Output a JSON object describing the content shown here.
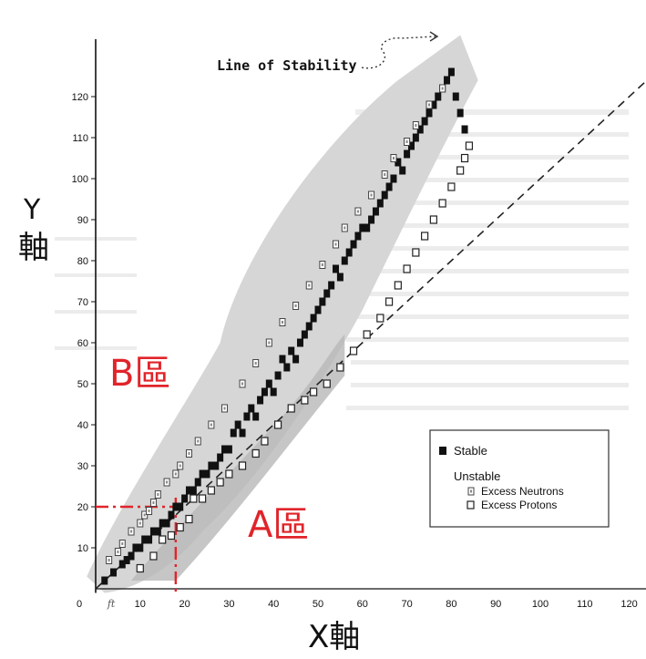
{
  "labels": {
    "y_axis_big": "Y",
    "y_axis_big_cjk": "軸",
    "x_axis_big": "X軸",
    "region_b": "B區",
    "region_a": "A區",
    "line_of_stability": "Line of Stability"
  },
  "colors": {
    "band": "#d6d6d6",
    "band_inner": "#b8b8b8",
    "region_marker": "#e0242a",
    "ink": "#111111"
  },
  "chart_data": {
    "type": "scatter",
    "title": "",
    "xlabel": "X軸",
    "ylabel": "Y軸",
    "xlim": [
      0,
      130
    ],
    "ylim": [
      0,
      130
    ],
    "x_ticks": [
      "0",
      "10",
      "20",
      "30",
      "40",
      "50",
      "60",
      "70",
      "80",
      "90",
      "100",
      "110",
      "120"
    ],
    "x_tick_values": [
      0,
      10,
      20,
      30,
      40,
      50,
      60,
      70,
      80,
      90,
      100,
      110,
      120
    ],
    "y_ticks": [
      "10",
      "20",
      "30",
      "40",
      "50",
      "60",
      "70",
      "80",
      "90",
      "100",
      "110",
      "120"
    ],
    "y_tick_values": [
      10,
      20,
      30,
      40,
      50,
      60,
      70,
      80,
      90,
      100,
      110,
      120
    ],
    "x_tick_at_8_text": "𝑓𝑡",
    "reference_line": {
      "style": "dashed",
      "points": [
        [
          0,
          0
        ],
        [
          130,
          130
        ]
      ]
    },
    "annotation": "Line of Stability",
    "marker_lines": {
      "x": 18,
      "y": 20
    },
    "legend": {
      "placement": "lower-right",
      "heading_stable": "Stable",
      "heading_unstable": "Unstable",
      "excess_neutrons": "Excess Neutrons",
      "excess_protons": "Excess Protons"
    },
    "series": [
      {
        "name": "Stable",
        "points": [
          [
            2,
            2
          ],
          [
            4,
            4
          ],
          [
            6,
            6
          ],
          [
            7,
            7
          ],
          [
            8,
            8
          ],
          [
            9,
            10
          ],
          [
            10,
            10
          ],
          [
            11,
            12
          ],
          [
            12,
            12
          ],
          [
            13,
            14
          ],
          [
            14,
            14
          ],
          [
            15,
            16
          ],
          [
            16,
            16
          ],
          [
            17,
            18
          ],
          [
            18,
            20
          ],
          [
            19,
            20
          ],
          [
            20,
            22
          ],
          [
            21,
            24
          ],
          [
            22,
            24
          ],
          [
            23,
            26
          ],
          [
            24,
            28
          ],
          [
            25,
            28
          ],
          [
            26,
            30
          ],
          [
            27,
            30
          ],
          [
            28,
            32
          ],
          [
            29,
            34
          ],
          [
            30,
            34
          ],
          [
            31,
            38
          ],
          [
            32,
            40
          ],
          [
            33,
            38
          ],
          [
            34,
            42
          ],
          [
            35,
            44
          ],
          [
            36,
            42
          ],
          [
            37,
            46
          ],
          [
            38,
            48
          ],
          [
            39,
            50
          ],
          [
            40,
            48
          ],
          [
            41,
            52
          ],
          [
            42,
            56
          ],
          [
            43,
            54
          ],
          [
            44,
            58
          ],
          [
            45,
            56
          ],
          [
            46,
            60
          ],
          [
            47,
            62
          ],
          [
            48,
            64
          ],
          [
            49,
            66
          ],
          [
            50,
            68
          ],
          [
            51,
            70
          ],
          [
            52,
            72
          ],
          [
            53,
            74
          ],
          [
            54,
            78
          ],
          [
            55,
            76
          ],
          [
            56,
            80
          ],
          [
            57,
            82
          ],
          [
            58,
            84
          ],
          [
            59,
            86
          ],
          [
            60,
            88
          ],
          [
            61,
            88
          ],
          [
            62,
            90
          ],
          [
            63,
            92
          ],
          [
            64,
            94
          ],
          [
            65,
            96
          ],
          [
            66,
            98
          ],
          [
            67,
            100
          ],
          [
            68,
            104
          ],
          [
            69,
            102
          ],
          [
            70,
            106
          ],
          [
            71,
            108
          ],
          [
            72,
            110
          ],
          [
            73,
            112
          ],
          [
            74,
            114
          ],
          [
            75,
            116
          ],
          [
            76,
            118
          ],
          [
            77,
            120
          ],
          [
            78,
            122
          ],
          [
            79,
            124
          ],
          [
            80,
            126
          ],
          [
            81,
            120
          ],
          [
            82,
            116
          ],
          [
            83,
            112
          ]
        ]
      },
      {
        "name": "Excess Neutrons",
        "points": [
          [
            3,
            7
          ],
          [
            5,
            9
          ],
          [
            6,
            11
          ],
          [
            8,
            14
          ],
          [
            10,
            16
          ],
          [
            11,
            18
          ],
          [
            12,
            19
          ],
          [
            13,
            21
          ],
          [
            14,
            23
          ],
          [
            16,
            26
          ],
          [
            18,
            28
          ],
          [
            19,
            30
          ],
          [
            21,
            33
          ],
          [
            23,
            36
          ],
          [
            26,
            40
          ],
          [
            29,
            44
          ],
          [
            33,
            50
          ],
          [
            36,
            55
          ],
          [
            39,
            60
          ],
          [
            42,
            65
          ],
          [
            45,
            69
          ],
          [
            48,
            74
          ],
          [
            51,
            79
          ],
          [
            54,
            84
          ],
          [
            56,
            88
          ],
          [
            59,
            92
          ],
          [
            62,
            96
          ],
          [
            65,
            101
          ],
          [
            67,
            105
          ],
          [
            70,
            109
          ],
          [
            72,
            113
          ],
          [
            75,
            118
          ],
          [
            78,
            122
          ]
        ]
      },
      {
        "name": "Excess Protons",
        "points": [
          [
            10,
            5
          ],
          [
            13,
            8
          ],
          [
            15,
            12
          ],
          [
            17,
            13
          ],
          [
            19,
            15
          ],
          [
            21,
            17
          ],
          [
            22,
            22
          ],
          [
            24,
            22
          ],
          [
            26,
            24
          ],
          [
            28,
            26
          ],
          [
            30,
            28
          ],
          [
            33,
            30
          ],
          [
            36,
            33
          ],
          [
            38,
            36
          ],
          [
            41,
            40
          ],
          [
            44,
            44
          ],
          [
            47,
            46
          ],
          [
            49,
            48
          ],
          [
            52,
            50
          ],
          [
            55,
            54
          ],
          [
            58,
            58
          ],
          [
            61,
            62
          ],
          [
            64,
            66
          ],
          [
            66,
            70
          ],
          [
            68,
            74
          ],
          [
            70,
            78
          ],
          [
            72,
            82
          ],
          [
            74,
            86
          ],
          [
            76,
            90
          ],
          [
            78,
            94
          ],
          [
            80,
            98
          ],
          [
            82,
            102
          ],
          [
            83,
            105
          ],
          [
            84,
            108
          ]
        ]
      }
    ]
  }
}
